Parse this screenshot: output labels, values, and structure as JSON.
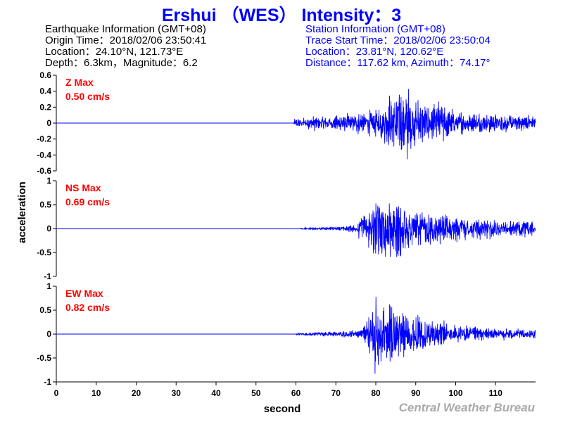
{
  "header": {
    "title": "Ershui （WES） Intensity：3",
    "earthquake_info": [
      "Earthquake Information  (GMT+08)",
      "Origin Time：2018/02/06 23:50:41",
      "Location：24.10°N, 121.73°E",
      "Depth：6.3km，Magnitude：6.2"
    ],
    "station_info": [
      "Station Information  (GMT+08)",
      "Trace Start Time：2018/02/06 23:50:04",
      "Location：23.81°N, 120.62°E",
      "Distance：117.62 km, Azimuth：74.17°"
    ]
  },
  "footer": {
    "credit": "Central Weather Bureau"
  },
  "colors": {
    "title": "#0000ff",
    "trace": "#0000ff",
    "max_label": "#ff0000",
    "info": "#000000",
    "credit": "#aaaaaa"
  },
  "chart_data": {
    "type": "line",
    "xlabel": "second",
    "ylabel": "acceleration",
    "xlim": [
      0,
      120
    ],
    "x_ticks": [
      0,
      10,
      20,
      30,
      40,
      50,
      60,
      70,
      80,
      90,
      100,
      110
    ],
    "panels": [
      {
        "id": "z",
        "max_title": "Z Max",
        "max_value": "0.50 cm/s",
        "ylim": [
          -0.6,
          0.6
        ],
        "y_ticks": [
          0.6,
          0.4,
          0.2,
          0,
          -0.2,
          -0.4,
          -0.6
        ],
        "y_tick_labels": [
          "0.6",
          "0.4",
          "0.2",
          "0",
          "-0.2",
          "-0.4",
          "-0.6"
        ],
        "onset": 59.5,
        "envelope": [
          [
            59.5,
            0.05
          ],
          [
            65,
            0.09
          ],
          [
            72,
            0.1
          ],
          [
            76,
            0.15
          ],
          [
            80,
            0.18
          ],
          [
            84,
            0.35
          ],
          [
            87,
            0.5
          ],
          [
            88,
            0.42
          ],
          [
            92,
            0.25
          ],
          [
            96,
            0.28
          ],
          [
            100,
            0.15
          ],
          [
            110,
            0.12
          ],
          [
            120,
            0.1
          ]
        ]
      },
      {
        "id": "ns",
        "max_title": "NS Max",
        "max_value": "0.69 cm/s",
        "ylim": [
          -1,
          1
        ],
        "y_ticks": [
          1,
          0.5,
          0,
          -0.5,
          -1
        ],
        "y_tick_labels": [
          "1",
          "0.5",
          "0",
          "-0.5",
          "-1"
        ],
        "onset": 61,
        "envelope": [
          [
            61,
            0.02
          ],
          [
            68,
            0.04
          ],
          [
            72,
            0.05
          ],
          [
            75,
            0.12
          ],
          [
            77,
            0.4
          ],
          [
            79,
            0.62
          ],
          [
            81,
            0.65
          ],
          [
            83,
            0.6
          ],
          [
            86,
            0.69
          ],
          [
            88,
            0.5
          ],
          [
            92,
            0.35
          ],
          [
            96,
            0.3
          ],
          [
            100,
            0.28
          ],
          [
            110,
            0.2
          ],
          [
            120,
            0.15
          ]
        ]
      },
      {
        "id": "ew",
        "max_title": "EW Max",
        "max_value": "0.82 cm/s",
        "ylim": [
          -1,
          1
        ],
        "y_ticks": [
          1,
          0.5,
          0,
          -0.5,
          -1
        ],
        "y_tick_labels": [
          "1",
          "0.5",
          "0",
          "-0.5",
          "-1"
        ],
        "onset": 60,
        "envelope": [
          [
            60,
            0.03
          ],
          [
            70,
            0.06
          ],
          [
            76,
            0.1
          ],
          [
            78,
            0.35
          ],
          [
            80,
            0.82
          ],
          [
            82,
            0.6
          ],
          [
            84,
            0.75
          ],
          [
            86,
            0.5
          ],
          [
            88,
            0.6
          ],
          [
            91,
            0.4
          ],
          [
            95,
            0.3
          ],
          [
            100,
            0.2
          ],
          [
            110,
            0.12
          ],
          [
            120,
            0.1
          ]
        ]
      }
    ]
  }
}
